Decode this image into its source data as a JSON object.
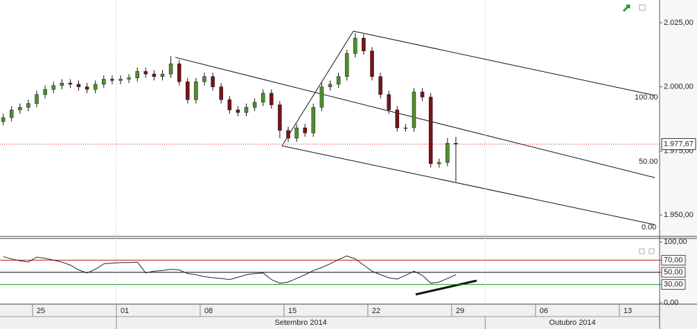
{
  "chart_data": [
    {
      "type": "candlestick",
      "x": [
        -1.75,
        -1.25,
        -0.75,
        -0.25,
        0.25,
        0.75,
        1.25,
        1.75,
        2.25,
        2.75,
        3.25,
        3.75,
        4.25,
        4.75,
        5.25,
        5.75,
        6.25,
        6.75,
        7.25,
        7.75,
        8.25,
        8.75,
        9.25,
        9.75,
        10.25,
        10.75,
        11.25,
        11.75,
        12.25,
        12.75,
        13.25,
        13.75,
        14.25,
        14.75,
        15.25,
        15.75,
        16.25,
        16.75,
        17.25,
        17.75,
        18.25,
        18.75,
        19.25,
        19.75,
        20.25,
        20.75,
        21.25,
        21.75,
        22.25,
        22.75,
        23.25,
        23.75,
        24.25,
        24.75,
        25.25
      ],
      "open": [
        1986.5,
        1988,
        1991,
        1992,
        1993.5,
        1997,
        1999,
        2000.5,
        2001.5,
        2001,
        2000,
        1999,
        2001,
        2003,
        2002.5,
        2003,
        2003.5,
        2006,
        2005,
        2004,
        2005,
        2009,
        2002,
        1995,
        2002,
        2004,
        2000,
        1995,
        1991,
        1990,
        1992,
        1994,
        1997.5,
        1993,
        1983,
        1980,
        1984,
        1982,
        1992,
        2000,
        2001,
        2004,
        2013,
        2019,
        2014,
        2004,
        1997,
        1991,
        1984,
        1984,
        1998,
        1996,
        1970,
        1970.5,
        1978
      ],
      "high": [
        1989.5,
        1992.5,
        1993.5,
        1995,
        1998.5,
        2000.5,
        2002,
        2003,
        2003,
        2002.5,
        2001.5,
        2002.5,
        2004.5,
        2004.5,
        2004.5,
        2005,
        2007.5,
        2007.5,
        2006.5,
        2006.5,
        2012,
        2010.5,
        2003.5,
        2003.5,
        2005.5,
        2005.5,
        2001.5,
        1996.5,
        1992.5,
        1993.5,
        1995.5,
        1999,
        1999,
        1994.5,
        1984.5,
        1985.5,
        1985.5,
        1993.5,
        2001.5,
        2002.5,
        2005.5,
        2014.5,
        2021,
        2020.5,
        2015.5,
        2005.5,
        1998.5,
        1992.5,
        1985.5,
        1999.5,
        1999.5,
        1997.5,
        1972,
        1980,
        1980.5
      ],
      "low": [
        1985,
        1986.5,
        1989.5,
        1990.5,
        1992,
        1995.5,
        1997.5,
        1999,
        1999.5,
        1998.5,
        1997.5,
        1997.5,
        1999.5,
        2001,
        2001,
        2001.5,
        2002,
        2003.5,
        2002.5,
        2002.5,
        2003.5,
        2000.5,
        1993.5,
        1993.5,
        2000.5,
        1998.5,
        1993.5,
        1989.5,
        1988.5,
        1988.5,
        1990.5,
        1992.5,
        1991.5,
        1980,
        1978.5,
        1978.5,
        1980.5,
        1980.5,
        1990.5,
        1998.5,
        1999.5,
        2002.5,
        2011.5,
        2012.5,
        2002.5,
        1995.5,
        1989.5,
        1982.5,
        1982.5,
        1982.5,
        1994.5,
        1968.5,
        1968.5,
        1969,
        1963
      ],
      "close": [
        1988,
        1991,
        1992,
        1993.5,
        1997,
        1999,
        2000.5,
        2001.5,
        2001,
        2000,
        1999,
        2001,
        2003,
        2002.5,
        2003,
        2003.5,
        2006,
        2005,
        2004,
        2005,
        2009,
        2002,
        1995,
        2002,
        2004,
        2000,
        1995,
        1991,
        1990,
        1992,
        1994,
        1997.5,
        1993,
        1983,
        1980,
        1984,
        1982,
        1992,
        2000,
        2001,
        2004,
        2013,
        2019,
        2014,
        2004,
        1997,
        1991,
        1984,
        1984,
        1998,
        1996,
        1970,
        1970.5,
        1978,
        1977.67
      ],
      "up_color": "#4f8f2f",
      "down_color": "#7a1414",
      "xlim": [
        -1.94,
        37.4
      ],
      "ylim": [
        1941.67,
        2033.87
      ],
      "yticks": [
        {
          "value": 1950,
          "label": "1.950,00"
        },
        {
          "value": 1975,
          "label": "1.975,00"
        },
        {
          "value": 2000,
          "label": "2.000,00"
        },
        {
          "value": 2025,
          "label": "2.025,00"
        }
      ],
      "last_price": {
        "value": 1977.67,
        "label": "1.977,67"
      },
      "channel_labels": [
        "100.00",
        "50.00",
        "0.00"
      ]
    },
    {
      "type": "line",
      "x": [
        -1.75,
        -1.25,
        -0.75,
        -0.25,
        0.25,
        0.75,
        1.25,
        1.75,
        2.25,
        2.75,
        3.25,
        3.75,
        4.25,
        4.75,
        5.25,
        5.75,
        6.25,
        6.75,
        7.25,
        7.75,
        8.25,
        8.75,
        9.25,
        9.75,
        10.25,
        10.75,
        11.25,
        11.75,
        12.25,
        12.75,
        13.25,
        13.75,
        14.25,
        14.75,
        15.25,
        15.75,
        16.25,
        16.75,
        17.25,
        17.75,
        18.25,
        18.75,
        19.25,
        19.75,
        20.25,
        20.75,
        21.25,
        21.75,
        22.25,
        22.75,
        23.25,
        23.75,
        24.25,
        24.75,
        25.25
      ],
      "values": [
        76,
        72,
        69,
        67,
        75,
        73,
        70,
        67,
        62,
        54,
        49,
        55,
        64,
        65,
        66,
        66,
        67,
        49,
        52,
        53,
        55,
        54,
        48,
        46,
        43,
        41,
        40,
        38,
        42,
        46,
        48,
        49,
        38,
        32,
        34,
        40,
        46,
        53,
        58,
        64,
        71,
        77,
        72,
        62,
        52,
        46,
        41,
        39,
        45,
        52,
        45,
        32,
        34,
        40,
        46
      ],
      "color": "#222222",
      "xlim": [
        -1.94,
        37.4
      ],
      "ylim": [
        -2.3,
        105.75
      ],
      "yticks": [
        {
          "value": 0,
          "label": "0,00"
        },
        {
          "value": 30,
          "label": "30,00"
        },
        {
          "value": 50,
          "label": "50,00"
        },
        {
          "value": 70,
          "label": "70,00"
        },
        {
          "value": 100,
          "label": "100,00"
        }
      ],
      "levels": [
        {
          "value": 70,
          "color": "#cc1010"
        },
        {
          "value": 50,
          "color": "#000000"
        },
        {
          "value": 30,
          "color": "#119911"
        }
      ],
      "xticks": [
        {
          "value": 0,
          "label": "25"
        },
        {
          "value": 5,
          "label": "01"
        },
        {
          "value": 10,
          "label": "08"
        },
        {
          "value": 15,
          "label": "15"
        },
        {
          "value": 20,
          "label": "22"
        },
        {
          "value": 25,
          "label": "29"
        },
        {
          "value": 30,
          "label": "06"
        },
        {
          "value": 35,
          "label": "13"
        }
      ],
      "months": [
        {
          "value": 5,
          "label": "Setembro 2014"
        },
        {
          "value": 27,
          "label": "Outubro 2014"
        }
      ]
    }
  ]
}
